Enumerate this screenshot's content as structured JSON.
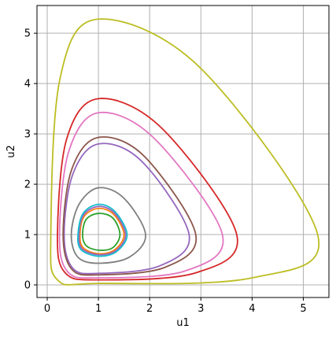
{
  "chart_data": {
    "type": "line",
    "title": "",
    "xlabel": "u1",
    "ylabel": "u2",
    "xlim": [
      -0.2,
      5.5
    ],
    "ylim": [
      -0.25,
      5.55
    ],
    "xticks": [
      0,
      1,
      2,
      3,
      4,
      5
    ],
    "yticks": [
      0,
      1,
      2,
      3,
      4,
      5
    ],
    "grid": true,
    "legend": "none",
    "series": [
      {
        "color": "#2ca02c",
        "points": [
          [
            1.0,
            0.69
          ],
          [
            0.76,
            0.78
          ],
          [
            0.69,
            1.0
          ],
          [
            0.76,
            1.3
          ],
          [
            1.0,
            1.42
          ],
          [
            1.28,
            1.33
          ],
          [
            1.42,
            1.0
          ],
          [
            1.28,
            0.74
          ]
        ]
      },
      {
        "color": "#ff7f0e",
        "points": [
          [
            1.0,
            0.62
          ],
          [
            0.7,
            0.74
          ],
          [
            0.64,
            1.0
          ],
          [
            0.72,
            1.36
          ],
          [
            1.0,
            1.52
          ],
          [
            1.3,
            1.4
          ],
          [
            1.5,
            1.0
          ],
          [
            1.32,
            0.7
          ]
        ]
      },
      {
        "color": "#9467bd",
        "points": [
          [
            1.0,
            0.6
          ],
          [
            0.68,
            0.72
          ],
          [
            0.62,
            1.0
          ],
          [
            0.71,
            1.39
          ],
          [
            1.0,
            1.56
          ],
          [
            1.31,
            1.43
          ],
          [
            1.53,
            1.0
          ],
          [
            1.34,
            0.68
          ]
        ]
      },
      {
        "color": "#17becf",
        "points": [
          [
            1.0,
            0.57
          ],
          [
            0.66,
            0.7
          ],
          [
            0.6,
            1.0
          ],
          [
            0.7,
            1.42
          ],
          [
            1.0,
            1.6
          ],
          [
            1.32,
            1.46
          ],
          [
            1.56,
            1.0
          ],
          [
            1.35,
            0.66
          ]
        ]
      },
      {
        "color": "#7f7f7f",
        "points": [
          [
            1.0,
            0.43
          ],
          [
            0.6,
            0.55
          ],
          [
            0.47,
            1.0
          ],
          [
            0.62,
            1.6
          ],
          [
            1.0,
            1.93
          ],
          [
            1.5,
            1.72
          ],
          [
            1.92,
            1.0
          ],
          [
            1.6,
            0.55
          ]
        ]
      },
      {
        "color": "#9467bd",
        "points": [
          [
            1.0,
            0.23
          ],
          [
            0.5,
            0.33
          ],
          [
            0.33,
            1.0
          ],
          [
            0.5,
            2.2
          ],
          [
            1.0,
            2.8
          ],
          [
            1.85,
            2.45
          ],
          [
            2.77,
            1.0
          ],
          [
            2.2,
            0.38
          ]
        ]
      },
      {
        "color": "#8c564b",
        "points": [
          [
            1.0,
            0.2
          ],
          [
            0.48,
            0.31
          ],
          [
            0.31,
            1.0
          ],
          [
            0.48,
            2.3
          ],
          [
            1.0,
            2.93
          ],
          [
            1.9,
            2.55
          ],
          [
            2.9,
            1.0
          ],
          [
            2.3,
            0.35
          ]
        ]
      },
      {
        "color": "#e377c2",
        "points": [
          [
            1.0,
            0.14
          ],
          [
            0.4,
            0.26
          ],
          [
            0.24,
            1.0
          ],
          [
            0.42,
            2.65
          ],
          [
            1.0,
            3.42
          ],
          [
            2.1,
            2.9
          ],
          [
            3.42,
            1.0
          ],
          [
            2.7,
            0.28
          ]
        ]
      },
      {
        "color": "#d62728",
        "points": [
          [
            1.0,
            0.1
          ],
          [
            0.35,
            0.24
          ],
          [
            0.2,
            1.0
          ],
          [
            0.38,
            2.9
          ],
          [
            1.0,
            3.7
          ],
          [
            2.25,
            3.1
          ],
          [
            3.7,
            1.0
          ],
          [
            2.9,
            0.24
          ]
        ]
      },
      {
        "color": "#bcbd22",
        "points": [
          [
            1.0,
            0.03
          ],
          [
            0.2,
            0.1
          ],
          [
            0.07,
            1.0
          ],
          [
            0.25,
            4.1
          ],
          [
            1.0,
            5.28
          ],
          [
            3.0,
            4.3
          ],
          [
            5.28,
            1.0
          ],
          [
            4.0,
            0.14
          ]
        ]
      }
    ]
  }
}
